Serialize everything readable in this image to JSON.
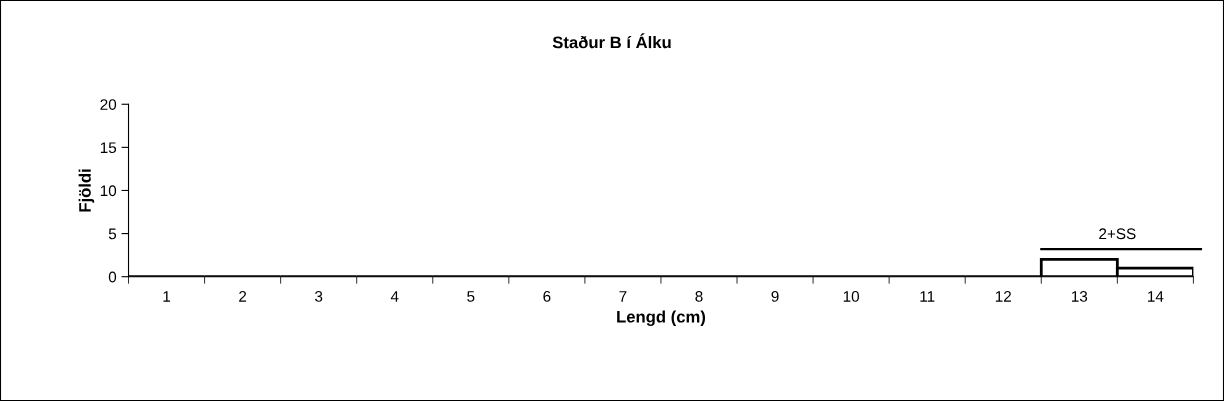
{
  "chart_data": {
    "type": "bar",
    "title": "Staður B í Álku",
    "xlabel": "Lengd (cm)",
    "ylabel": "Fjöldi",
    "categories": [
      "1",
      "2",
      "3",
      "4",
      "5",
      "6",
      "7",
      "8",
      "9",
      "10",
      "11",
      "12",
      "13",
      "14"
    ],
    "values": [
      0,
      0,
      0,
      0,
      0,
      0,
      0,
      0,
      0,
      0,
      0,
      0,
      2,
      1
    ],
    "color": "#ffffff",
    "ylim": [
      0,
      20
    ],
    "yticks": [
      0,
      5,
      10,
      15,
      20
    ],
    "annotations": [
      "2+SS"
    ],
    "grid": false,
    "legend": false
  }
}
